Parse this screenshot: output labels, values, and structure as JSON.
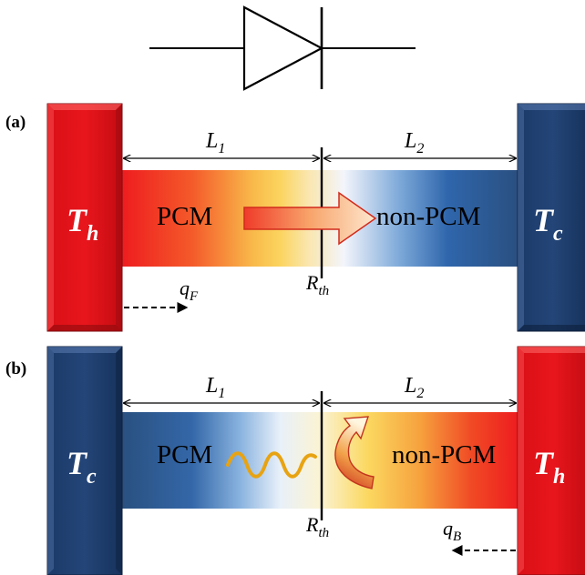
{
  "panels": {
    "a": {
      "label": "(a)",
      "left_reservoir": "T",
      "left_reservoir_sub": "h",
      "right_reservoir": "T",
      "right_reservoir_sub": "c",
      "left_material": "PCM",
      "right_material": "non-PCM",
      "length_left": "L",
      "length_left_sub": "1",
      "length_right": "L",
      "length_right_sub": "2",
      "interface": "R",
      "interface_sub": "th",
      "flux": "q",
      "flux_sub": "F",
      "colors": {
        "hot": "#e0141a",
        "cold": "#1e3d6e"
      }
    },
    "b": {
      "label": "(b)",
      "left_reservoir": "T",
      "left_reservoir_sub": "c",
      "right_reservoir": "T",
      "right_reservoir_sub": "h",
      "left_material": "PCM",
      "right_material": "non-PCM",
      "length_left": "L",
      "length_left_sub": "1",
      "length_right": "L",
      "length_right_sub": "2",
      "interface": "R",
      "interface_sub": "th",
      "flux": "q",
      "flux_sub": "B",
      "colors": {
        "hot": "#e0141a",
        "cold": "#1e3d6e"
      }
    }
  },
  "icons": [
    "diode-symbol-icon",
    "forward-heat-arrow-icon",
    "blocked-wave-icon",
    "reflected-curved-arrow-icon"
  ]
}
